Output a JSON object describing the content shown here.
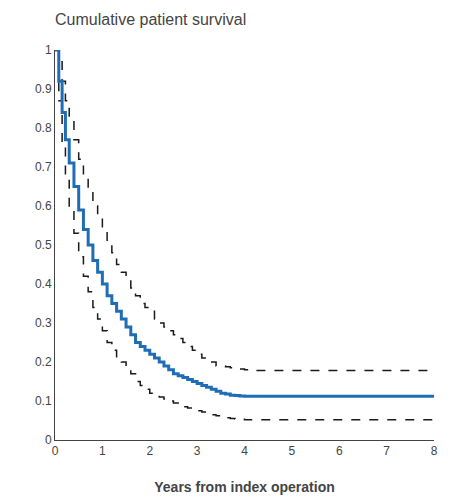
{
  "chart_data": {
    "type": "step",
    "title": "Cumulative patient survival",
    "xlabel": "Years from index operation",
    "xlim": [
      0,
      8
    ],
    "ylim": [
      0,
      1
    ],
    "xticks": [
      0,
      1,
      2,
      3,
      4,
      5,
      6,
      7,
      8
    ],
    "yticks": [
      0,
      0.1,
      0.2,
      0.3,
      0.4,
      0.5,
      0.6,
      0.7,
      0.8,
      0.9,
      1
    ],
    "grid": false,
    "series": [
      {
        "color": "#1a1a1a",
        "line_style": "dashed",
        "x": [
          0,
          0.08,
          0.15,
          0.22,
          0.3,
          0.4,
          0.5,
          0.6,
          0.7,
          0.8,
          0.9,
          1.0,
          1.1,
          1.2,
          1.3,
          1.4,
          1.5,
          1.6,
          1.7,
          1.8,
          1.9,
          2.0,
          2.1,
          2.2,
          2.3,
          2.4,
          2.5,
          2.6,
          2.7,
          2.8,
          2.9,
          3.0,
          3.1,
          3.2,
          3.3,
          3.4,
          3.5,
          3.6,
          3.7,
          3.8,
          3.9,
          4.0,
          4.1,
          4.2,
          8.0
        ],
        "values": [
          1.0,
          0.97,
          0.92,
          0.87,
          0.82,
          0.77,
          0.72,
          0.68,
          0.64,
          0.6,
          0.57,
          0.54,
          0.51,
          0.48,
          0.45,
          0.43,
          0.41,
          0.39,
          0.37,
          0.35,
          0.34,
          0.33,
          0.31,
          0.3,
          0.29,
          0.28,
          0.27,
          0.26,
          0.25,
          0.24,
          0.23,
          0.22,
          0.21,
          0.2,
          0.2,
          0.19,
          0.19,
          0.188,
          0.185,
          0.183,
          0.182,
          0.18,
          0.179,
          0.178,
          0.178
        ]
      },
      {
        "color": "#1a1a1a",
        "line_style": "dashed",
        "x": [
          0,
          0.08,
          0.15,
          0.22,
          0.3,
          0.4,
          0.5,
          0.6,
          0.7,
          0.8,
          0.9,
          1.0,
          1.1,
          1.2,
          1.3,
          1.4,
          1.5,
          1.6,
          1.7,
          1.8,
          1.9,
          2.0,
          2.1,
          2.2,
          2.3,
          2.4,
          2.5,
          2.6,
          2.7,
          2.8,
          2.9,
          3.0,
          3.1,
          3.2,
          3.3,
          3.4,
          3.5,
          3.6,
          3.7,
          3.8,
          3.9,
          4.0,
          4.1,
          4.2,
          8.0
        ],
        "values": [
          1.0,
          0.87,
          0.76,
          0.67,
          0.6,
          0.53,
          0.47,
          0.42,
          0.38,
          0.34,
          0.31,
          0.28,
          0.25,
          0.23,
          0.21,
          0.2,
          0.18,
          0.17,
          0.15,
          0.14,
          0.13,
          0.12,
          0.115,
          0.11,
          0.105,
          0.1,
          0.095,
          0.09,
          0.085,
          0.082,
          0.078,
          0.075,
          0.072,
          0.068,
          0.065,
          0.062,
          0.059,
          0.057,
          0.055,
          0.054,
          0.053,
          0.052,
          0.052,
          0.052,
          0.052
        ]
      },
      {
        "color": "#1F6DB5",
        "line_style": "solid",
        "x": [
          0,
          0.08,
          0.15,
          0.22,
          0.3,
          0.4,
          0.5,
          0.6,
          0.7,
          0.8,
          0.9,
          1.0,
          1.1,
          1.2,
          1.3,
          1.4,
          1.5,
          1.6,
          1.7,
          1.8,
          1.9,
          2.0,
          2.1,
          2.2,
          2.3,
          2.4,
          2.5,
          2.6,
          2.7,
          2.8,
          2.9,
          3.0,
          3.1,
          3.2,
          3.3,
          3.4,
          3.5,
          3.6,
          3.7,
          3.8,
          3.9,
          4.0,
          4.1,
          8.0
        ],
        "values": [
          1.0,
          0.92,
          0.84,
          0.77,
          0.71,
          0.65,
          0.59,
          0.54,
          0.5,
          0.46,
          0.43,
          0.4,
          0.37,
          0.35,
          0.33,
          0.31,
          0.29,
          0.27,
          0.25,
          0.24,
          0.23,
          0.22,
          0.21,
          0.2,
          0.19,
          0.18,
          0.17,
          0.165,
          0.16,
          0.155,
          0.15,
          0.145,
          0.14,
          0.135,
          0.13,
          0.125,
          0.12,
          0.118,
          0.115,
          0.114,
          0.113,
          0.112,
          0.112,
          0.112
        ]
      }
    ]
  }
}
